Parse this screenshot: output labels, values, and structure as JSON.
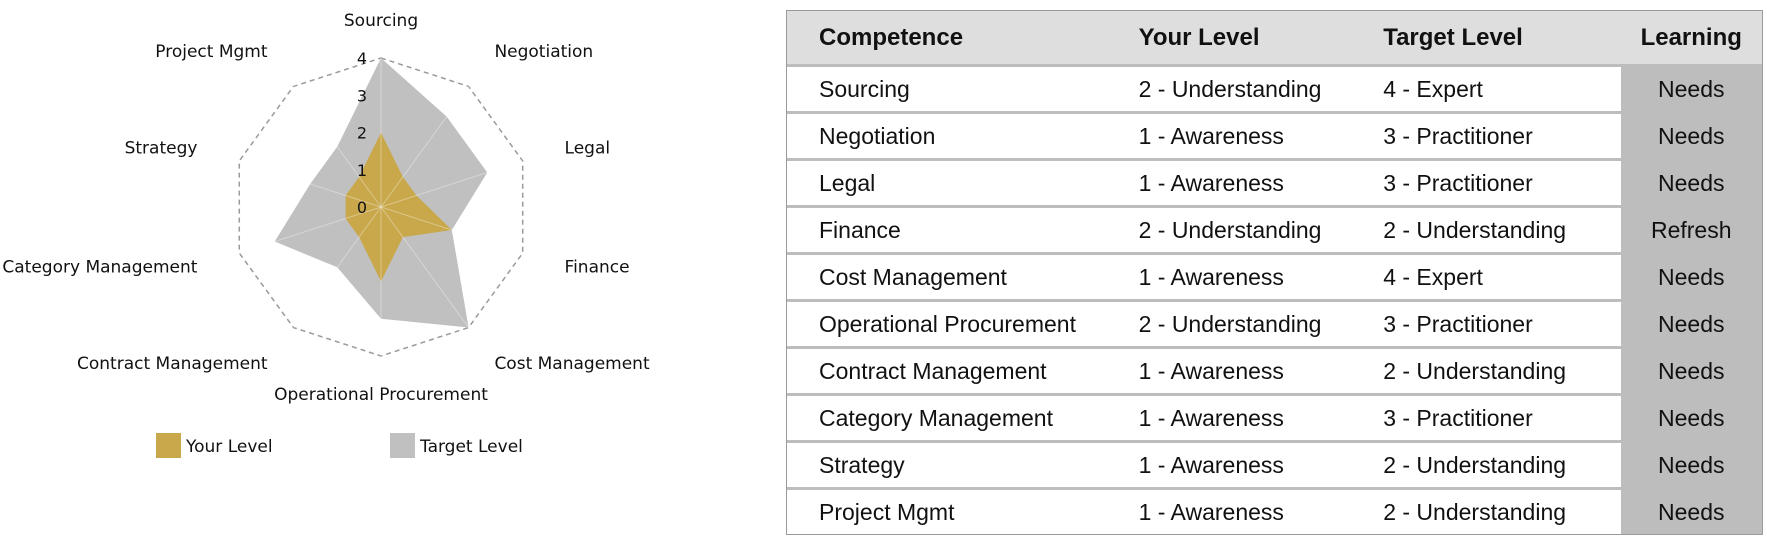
{
  "chart_data": {
    "type": "radar",
    "axes": [
      "Sourcing",
      "Negotiation",
      "Legal",
      "Finance",
      "Cost Management",
      "Operational Procurement",
      "Contract Management",
      "Category Management",
      "Strategy",
      "Project Mgmt"
    ],
    "ticks": [
      0,
      1,
      2,
      3,
      4
    ],
    "rmax": 4,
    "grid": "dashed-polygon",
    "legend_position": "bottom",
    "series": [
      {
        "name": "Your Level",
        "values": [
          2,
          1,
          1,
          2,
          1,
          2,
          1,
          1,
          1,
          1
        ],
        "color": "#c9a84c"
      },
      {
        "name": "Target Level",
        "values": [
          4,
          3,
          3,
          2,
          4,
          3,
          2,
          3,
          2,
          2
        ],
        "color": "#c0c0c0"
      }
    ]
  },
  "table": {
    "headers": [
      "Competence",
      "Your Level",
      "Target Level",
      "Learning"
    ],
    "rows": [
      [
        "Sourcing",
        "2 - Understanding",
        "4 - Expert",
        "Needs"
      ],
      [
        "Negotiation",
        "1 - Awareness",
        "3 - Practitioner",
        "Needs"
      ],
      [
        "Legal",
        "1 - Awareness",
        "3 - Practitioner",
        "Needs"
      ],
      [
        "Finance",
        "2 - Understanding",
        "2 - Understanding",
        "Refresh"
      ],
      [
        "Cost Management",
        "1 - Awareness",
        "4 - Expert",
        "Needs"
      ],
      [
        "Operational Procurement",
        "2 - Understanding",
        "3 - Practitioner",
        "Needs"
      ],
      [
        "Contract Management",
        "1 - Awareness",
        "2 - Understanding",
        "Needs"
      ],
      [
        "Category Management",
        "1 - Awareness",
        "3 - Practitioner",
        "Needs"
      ],
      [
        "Strategy",
        "1 - Awareness",
        "2 - Understanding",
        "Needs"
      ],
      [
        "Project Mgmt",
        "1 - Awareness",
        "2 - Understanding",
        "Needs"
      ]
    ]
  }
}
